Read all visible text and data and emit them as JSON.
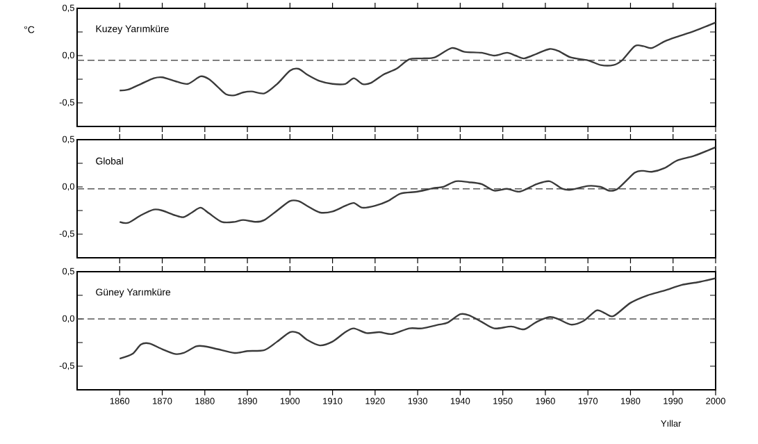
{
  "chart_data": [
    {
      "type": "line",
      "title": "Kuzey Yarımküre",
      "ylabel": "°C",
      "tick_labels": "y",
      "x": [
        1860,
        1862,
        1865,
        1868,
        1870,
        1873,
        1876,
        1879,
        1881,
        1883,
        1885,
        1887,
        1889,
        1891,
        1894,
        1897,
        1900,
        1902,
        1904,
        1907,
        1910,
        1913,
        1915,
        1917,
        1919,
        1922,
        1925,
        1928,
        1931,
        1934,
        1938,
        1941,
        1945,
        1948,
        1951,
        1953,
        1955,
        1958,
        1961,
        1963,
        1966,
        1970,
        1973,
        1976,
        1978,
        1981,
        1983,
        1985,
        1988,
        1991,
        1995,
        2000
      ],
      "series": [
        {
          "color": "#3a3a3a",
          "values": [
            -0.37,
            -0.36,
            -0.3,
            -0.24,
            -0.23,
            -0.27,
            -0.3,
            -0.22,
            -0.25,
            -0.33,
            -0.41,
            -0.42,
            -0.39,
            -0.38,
            -0.4,
            -0.3,
            -0.16,
            -0.14,
            -0.2,
            -0.27,
            -0.3,
            -0.3,
            -0.24,
            -0.3,
            -0.29,
            -0.2,
            -0.14,
            -0.04,
            -0.03,
            -0.02,
            0.08,
            0.04,
            0.03,
            0.0,
            0.03,
            0.0,
            -0.03,
            0.02,
            0.07,
            0.05,
            -0.02,
            -0.05,
            -0.1,
            -0.1,
            -0.05,
            0.1,
            0.1,
            0.08,
            0.15,
            0.2,
            0.26,
            0.35
          ]
        }
      ],
      "xlim": [
        1850,
        2000
      ],
      "ylim": [
        -0.75,
        0.5
      ],
      "xticks": [
        1860,
        1870,
        1880,
        1890,
        1900,
        1910,
        1920,
        1930,
        1940,
        1950,
        1960,
        1970,
        1980,
        1990,
        2000
      ],
      "yticks": [
        {
          "value": 0.5,
          "label": "0,5"
        },
        {
          "value": 0.25,
          "label": null
        },
        {
          "value": 0,
          "label": "0,0"
        },
        {
          "value": -0.25,
          "label": null
        },
        {
          "value": -0.5,
          "label": "-0,5"
        },
        {
          "value": -0.75,
          "label": null
        }
      ],
      "ref_lines": [
        {
          "axis": "y",
          "value": -0.05,
          "color": "#555555",
          "line_style": "dashed"
        }
      ]
    },
    {
      "type": "line",
      "title": "Global",
      "tick_labels": "y",
      "x": [
        1860,
        1862,
        1865,
        1868,
        1870,
        1873,
        1875,
        1877,
        1879,
        1881,
        1884,
        1887,
        1889,
        1892,
        1894,
        1897,
        1900,
        1902,
        1904,
        1907,
        1910,
        1913,
        1915,
        1917,
        1920,
        1923,
        1926,
        1930,
        1934,
        1936,
        1939,
        1942,
        1945,
        1948,
        1951,
        1954,
        1958,
        1961,
        1964,
        1966,
        1970,
        1973,
        1975,
        1977,
        1981,
        1983,
        1985,
        1988,
        1991,
        1995,
        2000
      ],
      "series": [
        {
          "color": "#3a3a3a",
          "values": [
            -0.37,
            -0.38,
            -0.3,
            -0.24,
            -0.25,
            -0.3,
            -0.32,
            -0.27,
            -0.22,
            -0.28,
            -0.37,
            -0.37,
            -0.35,
            -0.37,
            -0.35,
            -0.25,
            -0.15,
            -0.15,
            -0.2,
            -0.27,
            -0.26,
            -0.2,
            -0.17,
            -0.22,
            -0.2,
            -0.15,
            -0.07,
            -0.05,
            -0.01,
            0.0,
            0.06,
            0.05,
            0.03,
            -0.04,
            -0.02,
            -0.05,
            0.03,
            0.06,
            -0.02,
            -0.03,
            0.01,
            0.0,
            -0.04,
            -0.02,
            0.15,
            0.17,
            0.16,
            0.2,
            0.28,
            0.33,
            0.42
          ]
        }
      ],
      "xlim": [
        1850,
        2000
      ],
      "ylim": [
        -0.75,
        0.5
      ],
      "xticks": [
        1860,
        1870,
        1880,
        1890,
        1900,
        1910,
        1920,
        1930,
        1940,
        1950,
        1960,
        1970,
        1980,
        1990,
        2000
      ],
      "yticks": [
        {
          "value": 0.5,
          "label": "0,5"
        },
        {
          "value": 0.25,
          "label": null
        },
        {
          "value": 0,
          "label": "0,0"
        },
        {
          "value": -0.25,
          "label": null
        },
        {
          "value": -0.5,
          "label": "-0,5"
        },
        {
          "value": -0.75,
          "label": null
        }
      ],
      "ref_lines": [
        {
          "axis": "y",
          "value": -0.02,
          "color": "#555555",
          "line_style": "dashed"
        }
      ]
    },
    {
      "type": "line",
      "title": "Güney Yarımküre",
      "xlabel": "Yıllar",
      "x": [
        1860,
        1863,
        1865,
        1867,
        1870,
        1873,
        1875,
        1878,
        1880,
        1883,
        1887,
        1890,
        1894,
        1897,
        1900,
        1902,
        1904,
        1907,
        1910,
        1913,
        1915,
        1918,
        1921,
        1924,
        1928,
        1931,
        1935,
        1937,
        1940,
        1942,
        1945,
        1948,
        1952,
        1955,
        1958,
        1961,
        1963,
        1966,
        1969,
        1972,
        1974,
        1976,
        1980,
        1984,
        1988,
        1992,
        1996,
        2000
      ],
      "series": [
        {
          "color": "#3a3a3a",
          "values": [
            -0.42,
            -0.37,
            -0.27,
            -0.26,
            -0.32,
            -0.37,
            -0.36,
            -0.29,
            -0.29,
            -0.32,
            -0.36,
            -0.34,
            -0.33,
            -0.24,
            -0.14,
            -0.15,
            -0.22,
            -0.28,
            -0.24,
            -0.14,
            -0.1,
            -0.15,
            -0.14,
            -0.16,
            -0.1,
            -0.1,
            -0.06,
            -0.04,
            0.05,
            0.04,
            -0.03,
            -0.1,
            -0.08,
            -0.11,
            -0.03,
            0.02,
            0.0,
            -0.06,
            -0.02,
            0.09,
            0.06,
            0.03,
            0.17,
            0.25,
            0.3,
            0.36,
            0.39,
            0.43
          ]
        }
      ],
      "xlim": [
        1850,
        2000
      ],
      "ylim": [
        -0.75,
        0.5
      ],
      "xticks": [
        1860,
        1870,
        1880,
        1890,
        1900,
        1910,
        1920,
        1930,
        1940,
        1950,
        1960,
        1970,
        1980,
        1990,
        2000
      ],
      "yticks": [
        {
          "value": 0.5,
          "label": "0,5"
        },
        {
          "value": 0.25,
          "label": null
        },
        {
          "value": 0,
          "label": "0,0"
        },
        {
          "value": -0.25,
          "label": null
        },
        {
          "value": -0.5,
          "label": "-0,5"
        },
        {
          "value": -0.75,
          "label": null
        }
      ],
      "ref_lines": [
        {
          "axis": "y",
          "value": 0,
          "color": "#555555",
          "line_style": "dashed"
        }
      ]
    }
  ]
}
